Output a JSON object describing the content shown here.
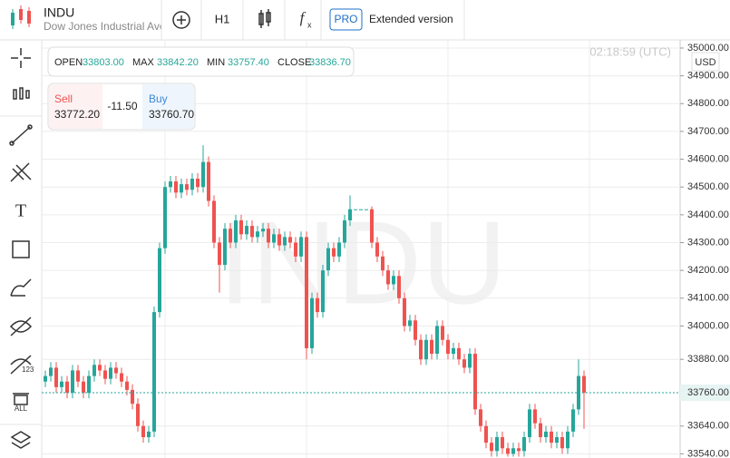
{
  "header": {
    "symbol": "INDU",
    "description": "Dow Jones Industrial Ave",
    "timeframe": "H1",
    "pro_badge": "PRO",
    "extended": "Extended version"
  },
  "ohlc": {
    "open_label": "OPEN",
    "open": "33803.00",
    "max_label": "MAX",
    "max": "33842.20",
    "min_label": "MIN",
    "min": "33757.40",
    "close_label": "CLOSE",
    "close": "33836.70"
  },
  "trade": {
    "sell_label": "Sell",
    "sell": "33772.20",
    "spread": "-11.50",
    "buy_label": "Buy",
    "buy": "33760.70"
  },
  "clock": "02:18:59 (UTC)",
  "currency": "USD",
  "watermark": "INDU",
  "chart_data": {
    "type": "candlestick",
    "up_color": "#26a69a",
    "down_color": "#ef5350",
    "ylim": [
      33525,
      35026
    ],
    "yticks": [
      {
        "value": 35000,
        "label": "35000.00"
      },
      {
        "value": 34900,
        "label": "34900.00"
      },
      {
        "value": 34800,
        "label": "34800.00"
      },
      {
        "value": 34700,
        "label": "34700.00"
      },
      {
        "value": 34600,
        "label": "34600.00"
      },
      {
        "value": 34500,
        "label": "34500.00"
      },
      {
        "value": 34400,
        "label": "34400.00"
      },
      {
        "value": 34300,
        "label": "34300.00"
      },
      {
        "value": 34200,
        "label": "34200.00"
      },
      {
        "value": 34100,
        "label": "34100.00"
      },
      {
        "value": 34000,
        "label": "34000.00"
      },
      {
        "value": 33880,
        "label": "33880.00"
      },
      {
        "value": 33640,
        "label": "33640.00"
      },
      {
        "value": 33540,
        "label": "33540.00"
      }
    ],
    "grid": true,
    "current_price": {
      "value": 33760,
      "label": "33760.00"
    },
    "open": [
      33800,
      33820,
      33850,
      33780,
      33800,
      33760,
      33840,
      33800,
      33760,
      33820,
      33860,
      33840,
      33810,
      33850,
      33830,
      33800,
      33770,
      33720,
      33640,
      33600,
      33620,
      34050,
      34280,
      34500,
      34520,
      34480,
      34510,
      34490,
      34530,
      34500,
      34590,
      34450,
      34300,
      34220,
      34350,
      34300,
      34380,
      34330,
      34360,
      34320,
      34340,
      34350,
      34300,
      34330,
      34290,
      34320,
      34300,
      34250,
      34320,
      33920,
      34100,
      34050,
      34200,
      34280,
      34250,
      34300,
      34380,
      34420,
      34420,
      34420,
      34420,
      34300,
      34250,
      34200,
      34150,
      34180,
      34100,
      34000,
      34020,
      33950,
      33880,
      33950,
      33900,
      34000,
      33950,
      33900,
      33920,
      33880,
      33850,
      33900,
      33700,
      33640,
      33580,
      33550,
      33600,
      33560,
      33540,
      33560,
      33550,
      33600,
      33700,
      33650,
      33600,
      33620,
      33580,
      33600,
      33560,
      33620,
      33700,
      33820
    ],
    "high": [
      33840,
      33870,
      33870,
      33820,
      33820,
      33860,
      33860,
      33820,
      33840,
      33880,
      33880,
      33860,
      33870,
      33870,
      33850,
      33820,
      33790,
      33740,
      33660,
      33640,
      34070,
      34300,
      34520,
      34540,
      34540,
      34530,
      34530,
      34550,
      34550,
      34650,
      34610,
      34470,
      34320,
      34370,
      34370,
      34400,
      34400,
      34380,
      34380,
      34360,
      34370,
      34370,
      34350,
      34350,
      34340,
      34340,
      34320,
      34340,
      34340,
      34120,
      34120,
      34220,
      34300,
      34300,
      34320,
      34400,
      34470,
      34420,
      34420,
      34420,
      34430,
      34320,
      34270,
      34220,
      34200,
      34200,
      34120,
      34040,
      34040,
      33970,
      33970,
      33970,
      34020,
      34020,
      33970,
      33940,
      33940,
      33900,
      33920,
      33920,
      33720,
      33660,
      33600,
      33620,
      33620,
      33580,
      33580,
      33580,
      33620,
      33720,
      33720,
      33670,
      33640,
      33640,
      33620,
      33620,
      33640,
      33720,
      33880,
      33840
    ],
    "low": [
      33780,
      33800,
      33760,
      33760,
      33740,
      33740,
      33780,
      33740,
      33740,
      33800,
      33820,
      33790,
      33790,
      33810,
      33780,
      33750,
      33700,
      33620,
      33580,
      33580,
      33600,
      34030,
      34260,
      34480,
      34460,
      34460,
      34470,
      34470,
      34480,
      34480,
      34430,
      34280,
      34120,
      34200,
      34280,
      34280,
      34310,
      34310,
      34300,
      34300,
      34320,
      34280,
      34280,
      34270,
      34270,
      34280,
      34230,
      34230,
      33880,
      33900,
      34030,
      34030,
      34180,
      34230,
      34230,
      34280,
      34360,
      34420,
      34420,
      34420,
      34280,
      34230,
      34180,
      34130,
      34130,
      34080,
      33980,
      33980,
      33930,
      33860,
      33860,
      33880,
      33880,
      33930,
      33880,
      33880,
      33860,
      33830,
      33830,
      33680,
      33620,
      33560,
      33530,
      33530,
      33540,
      33530,
      33530,
      33530,
      33530,
      33580,
      33630,
      33580,
      33580,
      33560,
      33560,
      33540,
      33540,
      33600,
      33680,
      33630
    ],
    "close": [
      33820,
      33850,
      33780,
      33800,
      33760,
      33840,
      33800,
      33760,
      33820,
      33860,
      33840,
      33810,
      33850,
      33830,
      33800,
      33770,
      33720,
      33640,
      33600,
      33620,
      34050,
      34280,
      34500,
      34520,
      34480,
      34510,
      34490,
      34530,
      34500,
      34590,
      34450,
      34300,
      34220,
      34350,
      34300,
      34380,
      34330,
      34360,
      34320,
      34340,
      34350,
      34300,
      34330,
      34290,
      34320,
      34300,
      34250,
      34320,
      33920,
      34100,
      34050,
      34200,
      34280,
      34250,
      34300,
      34380,
      34420,
      34420,
      34420,
      34420,
      34300,
      34250,
      34200,
      34150,
      34180,
      34100,
      34000,
      34020,
      33950,
      33880,
      33950,
      33900,
      34000,
      33950,
      33900,
      33920,
      33880,
      33850,
      33900,
      33700,
      33640,
      33580,
      33550,
      33600,
      33560,
      33540,
      33560,
      33550,
      33600,
      33700,
      33650,
      33600,
      33620,
      33580,
      33600,
      33560,
      33620,
      33700,
      33820,
      33760
    ]
  }
}
